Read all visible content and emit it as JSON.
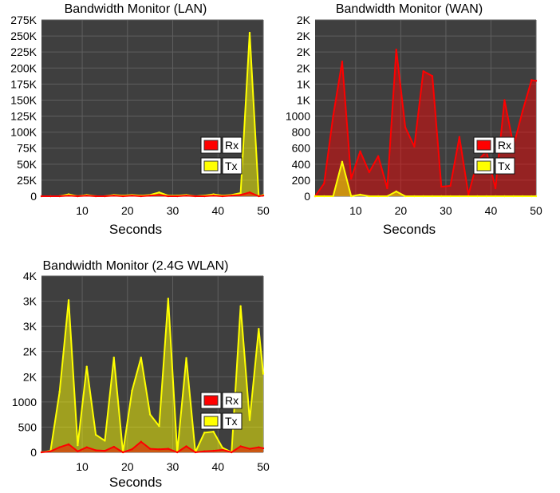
{
  "page": {
    "background": "#ffffff"
  },
  "style": {
    "plot_background": "#3f3f3f",
    "grid_color": "#5f5f5f",
    "rx_color": "#ff0000",
    "tx_color": "#ffff00",
    "rx_fill": "#8b2727",
    "tx_fill": "#a7a21f",
    "legend_border": "#111111"
  },
  "charts": [
    {
      "id": "lan",
      "title": "Bandwidth Monitor (LAN)",
      "xlabel": "Seconds",
      "x_ticks": [
        10,
        20,
        30,
        40,
        50
      ],
      "y_tick_labels": [
        "0",
        "25K",
        "50K",
        "75K",
        "100K",
        "125K",
        "150K",
        "175K",
        "200K",
        "225K",
        "250K",
        "275K"
      ],
      "legend": [
        {
          "name": "Rx",
          "color": "#ff0000"
        },
        {
          "name": "Tx",
          "color": "#ffff00"
        }
      ]
    },
    {
      "id": "wan",
      "title": "Bandwidth Monitor (WAN)",
      "xlabel": "Seconds",
      "x_ticks": [
        10,
        20,
        30,
        40,
        50
      ],
      "y_tick_labels": [
        "0",
        "200",
        "400",
        "600",
        "800",
        "1000",
        "1K",
        "1K",
        "2K",
        "2K",
        "2K",
        "2K"
      ],
      "legend": [
        {
          "name": "Rx",
          "color": "#ff0000"
        },
        {
          "name": "Tx",
          "color": "#ffff00"
        }
      ]
    },
    {
      "id": "wlan",
      "title": "Bandwidth Monitor (2.4G WLAN)",
      "xlabel": "Seconds",
      "x_ticks": [
        10,
        20,
        30,
        40,
        50
      ],
      "y_tick_labels": [
        "0",
        "500",
        "1000",
        "2K",
        "2K",
        "3K",
        "3K",
        "4K"
      ],
      "legend": [
        {
          "name": "Rx",
          "color": "#ff0000"
        },
        {
          "name": "Tx",
          "color": "#ffff00"
        }
      ]
    }
  ],
  "chart_data": [
    {
      "type": "area",
      "title": "Bandwidth Monitor (LAN)",
      "xlabel": "Seconds",
      "ylabel": "",
      "xlim": [
        1,
        50
      ],
      "ylim": [
        0,
        275000
      ],
      "grid": true,
      "legend_position": "right",
      "x": [
        1,
        3,
        5,
        7,
        9,
        11,
        13,
        15,
        17,
        19,
        21,
        23,
        25,
        27,
        29,
        31,
        33,
        35,
        37,
        39,
        41,
        43,
        45,
        47,
        49,
        50
      ],
      "series": [
        {
          "name": "Tx",
          "color": "#ffff00",
          "values": [
            0,
            0,
            0,
            3000,
            0,
            2000,
            0,
            0,
            2000,
            1000,
            2000,
            1000,
            2000,
            6000,
            1000,
            1000,
            2000,
            0,
            1000,
            3000,
            1000,
            2000,
            5000,
            255000,
            0,
            2000
          ]
        },
        {
          "name": "Rx",
          "color": "#ff0000",
          "values": [
            0,
            0,
            0,
            1000,
            0,
            1000,
            0,
            0,
            1000,
            0,
            1000,
            0,
            1000,
            2000,
            0,
            0,
            1000,
            0,
            0,
            1000,
            0,
            1000,
            2000,
            6000,
            0,
            1000
          ]
        }
      ]
    },
    {
      "type": "area",
      "title": "Bandwidth Monitor (WAN)",
      "xlabel": "Seconds",
      "ylabel": "",
      "xlim": [
        1,
        50
      ],
      "ylim": [
        0,
        2200
      ],
      "grid": true,
      "legend_position": "right",
      "x": [
        1,
        3,
        5,
        7,
        9,
        11,
        13,
        15,
        17,
        19,
        21,
        23,
        25,
        27,
        29,
        31,
        33,
        35,
        37,
        39,
        41,
        43,
        45,
        47,
        49,
        50
      ],
      "series": [
        {
          "name": "Rx",
          "color": "#ff0000",
          "values": [
            0,
            160,
            1000,
            1680,
            220,
            560,
            300,
            500,
            100,
            1830,
            860,
            620,
            1560,
            1500,
            120,
            130,
            740,
            20,
            440,
            560,
            100,
            1200,
            630,
            1060,
            1450,
            1440
          ]
        },
        {
          "name": "Tx",
          "color": "#ffff00",
          "values": [
            0,
            0,
            0,
            430,
            0,
            20,
            0,
            0,
            0,
            60,
            0,
            0,
            0,
            0,
            0,
            0,
            0,
            0,
            0,
            0,
            0,
            0,
            0,
            0,
            0,
            0
          ]
        }
      ]
    },
    {
      "type": "area",
      "title": "Bandwidth Monitor (2.4G WLAN)",
      "xlabel": "Seconds",
      "ylabel": "",
      "xlim": [
        1,
        50
      ],
      "ylim": [
        0,
        3500
      ],
      "grid": true,
      "legend_position": "right",
      "x": [
        1,
        3,
        5,
        7,
        9,
        11,
        13,
        15,
        17,
        19,
        21,
        23,
        25,
        27,
        29,
        31,
        33,
        35,
        37,
        39,
        41,
        43,
        45,
        47,
        49,
        50
      ],
      "series": [
        {
          "name": "Tx",
          "color": "#ffff00",
          "values": [
            0,
            30,
            1200,
            3020,
            140,
            1700,
            350,
            230,
            1880,
            0,
            1220,
            1880,
            750,
            520,
            3050,
            1,
            1870,
            1,
            390,
            410,
            90,
            1,
            2900,
            640,
            2450,
            1560
          ]
        },
        {
          "name": "Rx",
          "color": "#ff0000",
          "values": [
            0,
            20,
            100,
            160,
            20,
            100,
            40,
            30,
            110,
            0,
            60,
            210,
            70,
            60,
            70,
            0,
            120,
            0,
            20,
            30,
            50,
            0,
            120,
            70,
            100,
            80
          ]
        }
      ]
    }
  ]
}
